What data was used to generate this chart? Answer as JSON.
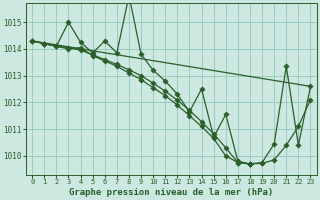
{
  "xlim": [
    -0.5,
    23.5
  ],
  "ylim": [
    1009.3,
    1015.7
  ],
  "yticks": [
    1010,
    1011,
    1012,
    1013,
    1014,
    1015
  ],
  "xticks": [
    0,
    1,
    2,
    3,
    4,
    5,
    6,
    7,
    8,
    9,
    10,
    11,
    12,
    13,
    14,
    15,
    16,
    17,
    18,
    19,
    20,
    21,
    22,
    23
  ],
  "xlabel": "Graphe pression niveau de la mer (hPa)",
  "bg_color": "#cce8e0",
  "grid_color": "#99ccc0",
  "line_color": "#2a5e2a",
  "marker_size": 2.8,
  "series": [
    {
      "name": "straight_trend",
      "x": [
        0,
        23
      ],
      "y": [
        1014.3,
        1012.6
      ],
      "marker": false
    },
    {
      "name": "main_with_markers",
      "x": [
        0,
        1,
        2,
        3,
        4,
        5,
        6,
        7,
        8,
        9,
        10,
        11,
        12,
        13,
        14,
        15,
        16,
        17,
        18,
        19,
        20,
        21,
        22,
        23
      ],
      "y": [
        1014.3,
        1014.2,
        1014.1,
        1015.0,
        1014.25,
        1013.85,
        1014.3,
        1013.85,
        1016.0,
        1013.8,
        1013.2,
        1012.8,
        1012.3,
        1011.65,
        1012.5,
        1010.7,
        1011.55,
        1009.8,
        1009.7,
        1009.75,
        1010.45,
        1013.35,
        1010.4,
        1012.6
      ],
      "marker": true
    },
    {
      "name": "secondary_with_markers",
      "x": [
        0,
        1,
        2,
        3,
        4,
        5,
        6,
        7,
        8,
        9,
        10,
        11,
        12,
        13,
        14,
        15,
        16,
        17,
        18,
        19,
        20,
        21,
        22,
        23
      ],
      "y": [
        1014.3,
        1014.2,
        1014.1,
        1014.0,
        1014.05,
        1013.75,
        1013.55,
        1013.35,
        1013.1,
        1012.85,
        1012.55,
        1012.25,
        1011.9,
        1011.5,
        1011.1,
        1010.65,
        1010.0,
        1009.75,
        1009.7,
        1009.72,
        1009.85,
        1010.4,
        1011.1,
        1012.1
      ],
      "marker": true
    },
    {
      "name": "third_line",
      "x": [
        0,
        1,
        2,
        3,
        4,
        5,
        6,
        7,
        8,
        9,
        10,
        11,
        12,
        13,
        14,
        15,
        16,
        17,
        18
      ],
      "y": [
        1014.3,
        1014.2,
        1014.1,
        1014.05,
        1013.95,
        1013.78,
        1013.6,
        1013.42,
        1013.22,
        1013.0,
        1012.72,
        1012.42,
        1012.08,
        1011.7,
        1011.28,
        1010.82,
        1010.3,
        1009.75,
        1009.7
      ],
      "marker": true
    }
  ]
}
